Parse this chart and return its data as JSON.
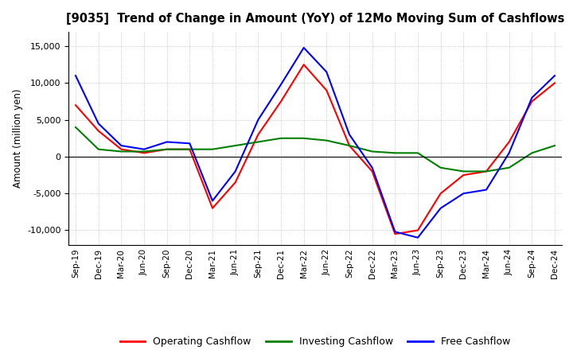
{
  "title": "[9035]  Trend of Change in Amount (YoY) of 12Mo Moving Sum of Cashflows",
  "ylabel": "Amount (million yen)",
  "ylim": [
    -12000,
    17000
  ],
  "yticks": [
    -10000,
    -5000,
    0,
    5000,
    10000,
    15000
  ],
  "x_labels": [
    "Sep-19",
    "Dec-19",
    "Mar-20",
    "Jun-20",
    "Sep-20",
    "Dec-20",
    "Mar-21",
    "Jun-21",
    "Sep-21",
    "Dec-21",
    "Mar-22",
    "Jun-22",
    "Sep-22",
    "Dec-22",
    "Mar-23",
    "Jun-23",
    "Sep-23",
    "Dec-23",
    "Mar-24",
    "Jun-24",
    "Sep-24",
    "Dec-24"
  ],
  "operating": [
    7000,
    3500,
    1000,
    500,
    1000,
    1000,
    -7000,
    -3500,
    3000,
    7500,
    12500,
    9000,
    1500,
    -2000,
    -10500,
    -10000,
    -5000,
    -2500,
    -2000,
    2000,
    7500,
    10000
  ],
  "investing": [
    4000,
    1000,
    700,
    700,
    1000,
    1000,
    1000,
    1500,
    2000,
    2500,
    2500,
    2200,
    1500,
    700,
    500,
    500,
    -1500,
    -2000,
    -2000,
    -1500,
    500,
    1500
  ],
  "free": [
    11000,
    4500,
    1500,
    1000,
    2000,
    1800,
    -6000,
    -2000,
    5000,
    9800,
    14800,
    11500,
    3000,
    -1500,
    -10200,
    -11000,
    -7000,
    -5000,
    -4500,
    500,
    8000,
    11000
  ],
  "operating_color": "#ff0000",
  "investing_color": "#008000",
  "free_color": "#0000ff",
  "background_color": "#ffffff",
  "grid_color": "#aaaaaa",
  "legend_labels": [
    "Operating Cashflow",
    "Investing Cashflow",
    "Free Cashflow"
  ]
}
